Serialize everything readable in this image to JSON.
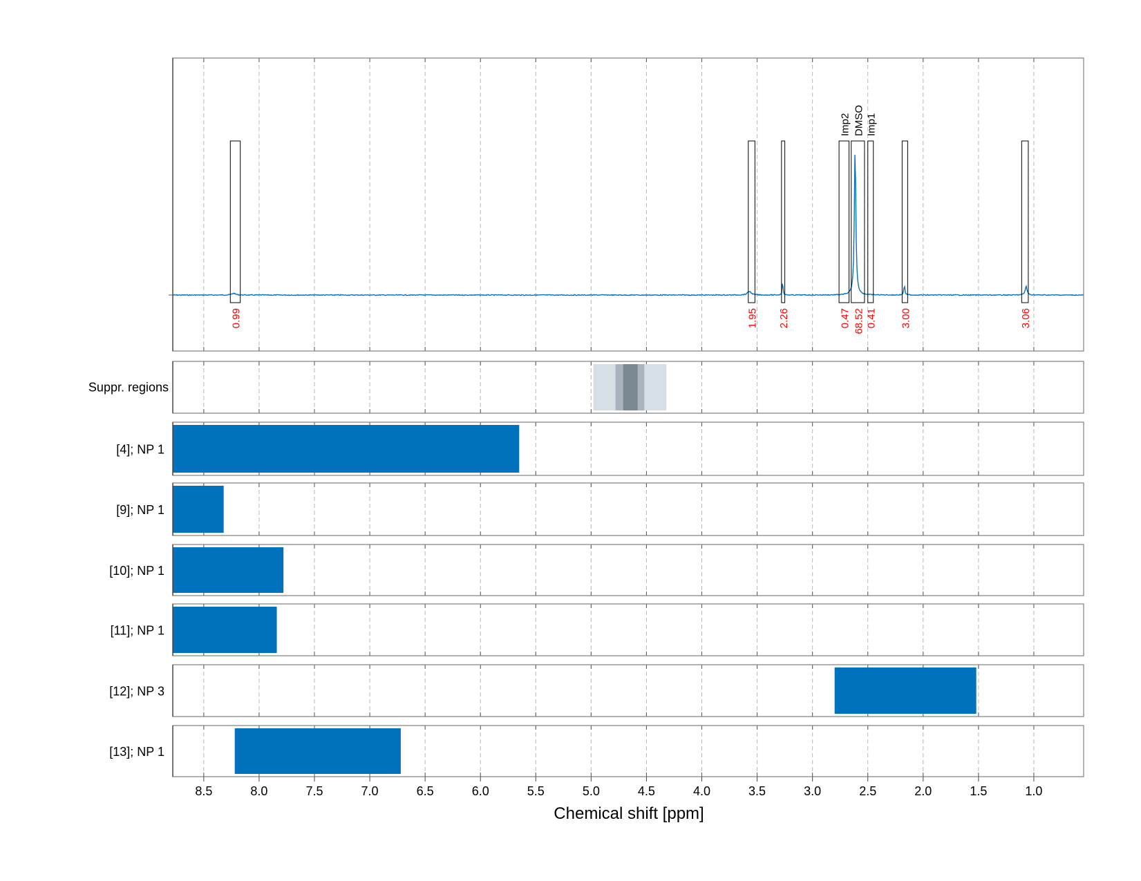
{
  "chart_data": {
    "type": "nmr-spectrum",
    "title": "",
    "xlabel": "Chemical shift [ppm]",
    "xlim": [
      8.78,
      0.55
    ],
    "x_reversed": true,
    "grid": "vertical dashed",
    "ticks": [
      8.5,
      8.0,
      7.5,
      7.0,
      6.5,
      6.0,
      5.5,
      5.0,
      4.5,
      4.0,
      3.5,
      3.0,
      2.5,
      2.0,
      1.5,
      1.0
    ],
    "tick_labels": [
      "8.5",
      "8.0",
      "7.5",
      "7.0",
      "6.5",
      "6.0",
      "5.5",
      "5.0",
      "4.5",
      "4.0",
      "3.5",
      "3.0",
      "2.5",
      "2.0",
      "1.5",
      "1.0"
    ],
    "spectrum": {
      "color": "#0072BD",
      "peaks": [
        {
          "ppm": 8.23,
          "height": 0.012,
          "width": 0.02
        },
        {
          "ppm": 3.57,
          "height": 0.025,
          "width": 0.02
        },
        {
          "ppm": 3.27,
          "height": 0.11,
          "width": 0.004
        },
        {
          "ppm": 2.615,
          "height": 1.0,
          "width": 0.008
        },
        {
          "ppm": 2.17,
          "height": 0.065,
          "width": 0.006
        },
        {
          "ppm": 1.07,
          "height": 0.06,
          "width": 0.01
        }
      ]
    },
    "integration_regions": [
      {
        "from": 8.26,
        "to": 8.17,
        "value": "0.99",
        "label": ""
      },
      {
        "from": 3.58,
        "to": 3.52,
        "value": "1.95",
        "label": ""
      },
      {
        "from": 3.28,
        "to": 3.25,
        "value": "2.26",
        "label": ""
      },
      {
        "from": 2.76,
        "to": 2.67,
        "value": "0.47",
        "label": "Imp2"
      },
      {
        "from": 2.65,
        "to": 2.53,
        "value": "68.52",
        "label": "DMSO"
      },
      {
        "from": 2.5,
        "to": 2.45,
        "value": "0.41",
        "label": "Imp1"
      },
      {
        "from": 2.19,
        "to": 2.14,
        "value": "3.00",
        "label": ""
      },
      {
        "from": 1.11,
        "to": 1.05,
        "value": "3.06",
        "label": ""
      }
    ],
    "value_color": "#ff0000",
    "suppression": {
      "label": "Suppr. regions",
      "bands": [
        {
          "from": 4.98,
          "to": 4.32,
          "color": "#d7dfe6"
        },
        {
          "from": 4.78,
          "to": 4.52,
          "color": "#aab4be"
        },
        {
          "from": 4.71,
          "to": 4.58,
          "color": "#7a8892"
        }
      ]
    },
    "range_rows": [
      {
        "label": "[4]; NP 1",
        "from": 8.78,
        "to": 5.65
      },
      {
        "label": "[9]; NP 1",
        "from": 8.78,
        "to": 8.32
      },
      {
        "label": "[10]; NP 1",
        "from": 8.78,
        "to": 7.78
      },
      {
        "label": "[11]; NP 1",
        "from": 8.78,
        "to": 7.84
      },
      {
        "label": "[12]; NP 3",
        "from": 2.8,
        "to": 1.52
      },
      {
        "label": "[13]; NP 1",
        "from": 8.22,
        "to": 6.72
      }
    ],
    "bar_color": "#0072BD"
  }
}
